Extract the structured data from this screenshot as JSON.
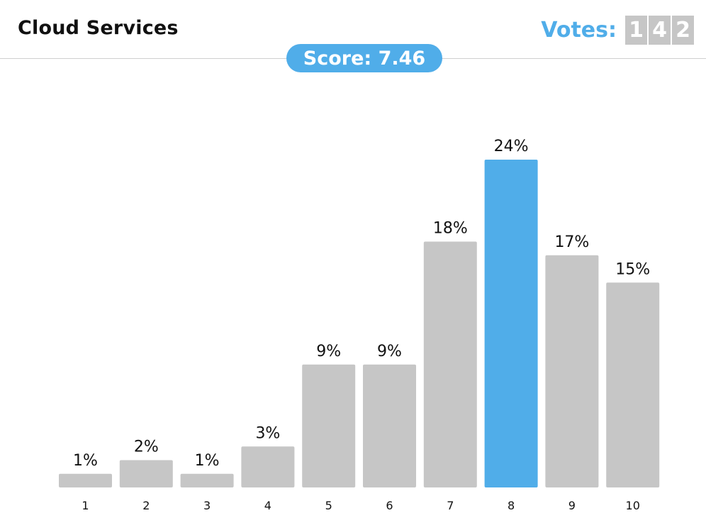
{
  "header": {
    "title": "Cloud Services",
    "votes_label": "Votes:",
    "votes_digits": [
      "1",
      "4",
      "2"
    ]
  },
  "score": {
    "label": "Score: 7.46"
  },
  "colors": {
    "accent": "#50ade9",
    "bar": "#c6c6c6",
    "text": "#111111"
  },
  "chart_data": {
    "type": "bar",
    "categories": [
      "1",
      "2",
      "3",
      "4",
      "5",
      "6",
      "7",
      "8",
      "9",
      "10"
    ],
    "values": [
      1,
      2,
      1,
      3,
      9,
      9,
      18,
      24,
      17,
      15
    ],
    "value_labels": [
      "1%",
      "2%",
      "1%",
      "3%",
      "9%",
      "9%",
      "18%",
      "24%",
      "17%",
      "15%"
    ],
    "highlight_category": "8",
    "ylim": [
      0,
      24
    ],
    "grid": false
  }
}
